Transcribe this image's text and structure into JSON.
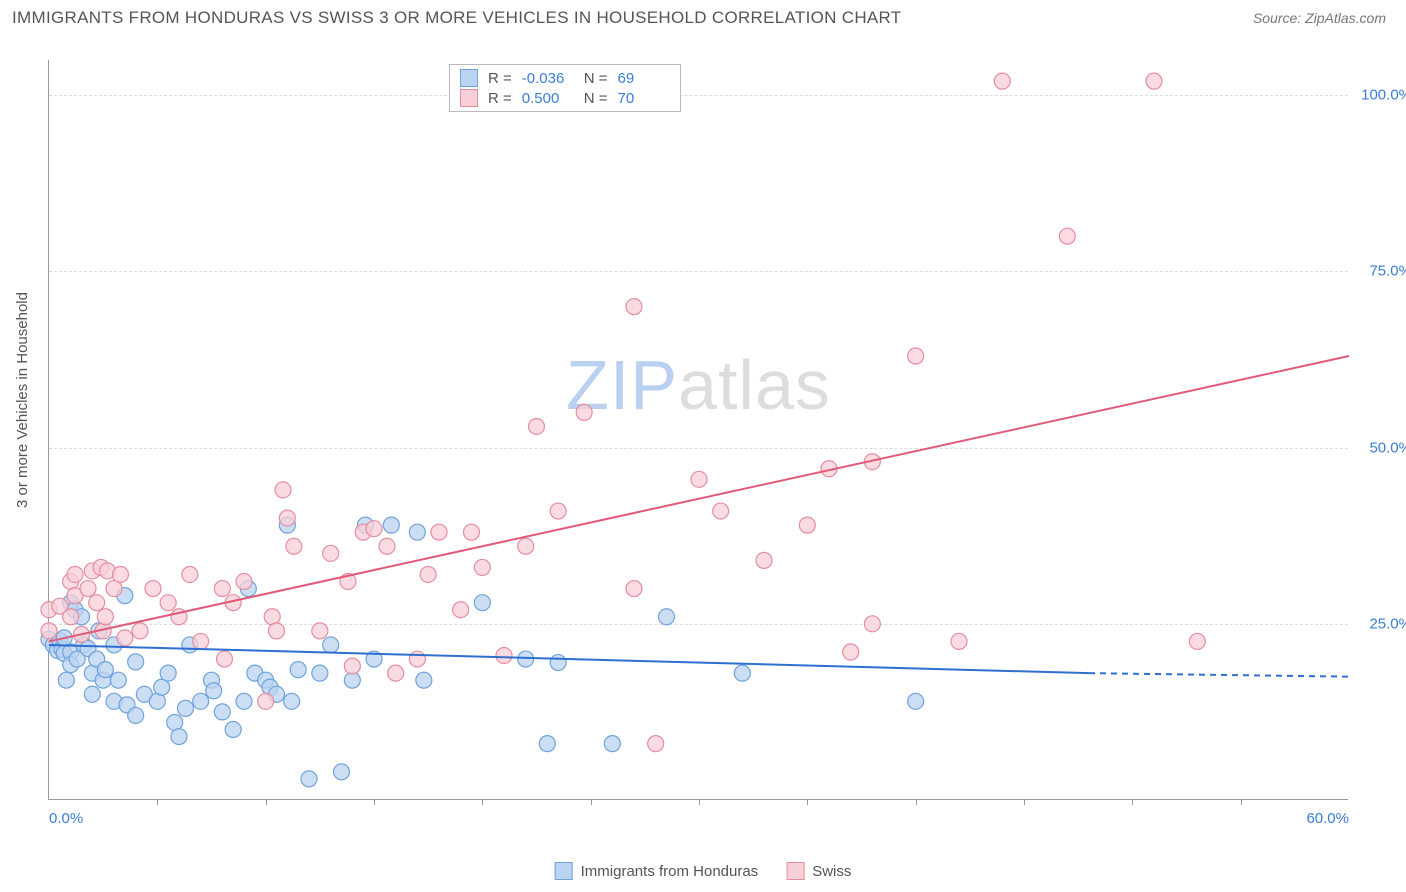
{
  "header": {
    "title": "IMMIGRANTS FROM HONDURAS VS SWISS 3 OR MORE VEHICLES IN HOUSEHOLD CORRELATION CHART",
    "source": "Source: ZipAtlas.com"
  },
  "watermark": {
    "zip": "ZIP",
    "atlas": "atlas"
  },
  "chart": {
    "type": "scatter",
    "background_color": "#ffffff",
    "grid_color": "#dddddd",
    "axis_color": "#999999",
    "text_color": "#555555",
    "tick_label_color": "#3b7dd8",
    "y_axis_title": "3 or more Vehicles in Household",
    "xlim": [
      0,
      60
    ],
    "ylim": [
      0,
      105
    ],
    "x_ticks": [
      0,
      60
    ],
    "x_tick_labels": [
      "0.0%",
      "60.0%"
    ],
    "x_minor_ticks": [
      5,
      10,
      15,
      20,
      25,
      30,
      35,
      40,
      45,
      50,
      55
    ],
    "y_ticks": [
      25,
      50,
      75,
      100
    ],
    "y_tick_labels": [
      "25.0%",
      "50.0%",
      "75.0%",
      "100.0%"
    ],
    "marker_radius": 8,
    "marker_stroke_width": 1.2,
    "trend_line_width": 2,
    "series": [
      {
        "name": "Immigrants from Honduras",
        "marker_fill": "#b9d3f0",
        "marker_stroke": "#6fa3dc",
        "line_color": "#2f6fd0",
        "R": "-0.036",
        "N": "69",
        "trend": {
          "x1": 0,
          "y1": 22.0,
          "x2": 48,
          "y2": 18.0,
          "dash_from_x": 48,
          "dash_to_x": 60,
          "dash_y": 17.5
        },
        "points": [
          [
            0.0,
            22.8
          ],
          [
            0.2,
            22.0
          ],
          [
            0.4,
            21.2
          ],
          [
            0.5,
            22.6
          ],
          [
            0.6,
            21.4
          ],
          [
            0.7,
            20.8
          ],
          [
            0.7,
            23.0
          ],
          [
            0.8,
            17.0
          ],
          [
            1.0,
            21.0
          ],
          [
            1.0,
            19.2
          ],
          [
            1.0,
            28.0
          ],
          [
            1.2,
            27.0
          ],
          [
            1.3,
            20.0
          ],
          [
            1.5,
            26.0
          ],
          [
            1.6,
            22.0
          ],
          [
            1.8,
            21.5
          ],
          [
            2.0,
            15.0
          ],
          [
            2.0,
            18.0
          ],
          [
            2.2,
            20.0
          ],
          [
            2.3,
            24.0
          ],
          [
            2.5,
            17.0
          ],
          [
            2.6,
            18.5
          ],
          [
            3.0,
            14.0
          ],
          [
            3.0,
            22.0
          ],
          [
            3.2,
            17.0
          ],
          [
            3.5,
            29.0
          ],
          [
            3.6,
            13.5
          ],
          [
            4.0,
            12.0
          ],
          [
            4.0,
            19.6
          ],
          [
            4.4,
            15.0
          ],
          [
            5.0,
            14.0
          ],
          [
            5.2,
            16.0
          ],
          [
            5.5,
            18.0
          ],
          [
            5.8,
            11.0
          ],
          [
            6.0,
            9.0
          ],
          [
            6.3,
            13.0
          ],
          [
            6.5,
            22.0
          ],
          [
            7.0,
            14.0
          ],
          [
            7.5,
            17.0
          ],
          [
            7.6,
            15.5
          ],
          [
            8.0,
            12.5
          ],
          [
            8.5,
            10.0
          ],
          [
            9.0,
            14.0
          ],
          [
            9.2,
            30.0
          ],
          [
            9.5,
            18.0
          ],
          [
            10.0,
            17.0
          ],
          [
            10.2,
            16.0
          ],
          [
            10.5,
            15.0
          ],
          [
            11.0,
            39.0
          ],
          [
            11.2,
            14.0
          ],
          [
            11.5,
            18.5
          ],
          [
            12.0,
            3.0
          ],
          [
            12.5,
            18.0
          ],
          [
            13.0,
            22.0
          ],
          [
            13.5,
            4.0
          ],
          [
            14.0,
            17.0
          ],
          [
            14.6,
            39.0
          ],
          [
            15.0,
            20.0
          ],
          [
            15.8,
            39.0
          ],
          [
            17.0,
            38.0
          ],
          [
            17.3,
            17.0
          ],
          [
            20.0,
            28.0
          ],
          [
            22.0,
            20.0
          ],
          [
            23.0,
            8.0
          ],
          [
            23.5,
            19.5
          ],
          [
            26.0,
            8.0
          ],
          [
            28.5,
            26.0
          ],
          [
            32.0,
            18.0
          ],
          [
            40.0,
            14.0
          ]
        ]
      },
      {
        "name": "Swiss",
        "marker_fill": "#f7cfd7",
        "marker_stroke": "#e58ea0",
        "line_color": "#e05a7a",
        "R": "0.500",
        "N": "70",
        "trend": {
          "x1": 0,
          "y1": 22.5,
          "x2": 60,
          "y2": 63.0
        },
        "points": [
          [
            0.0,
            24.0
          ],
          [
            0.0,
            27.0
          ],
          [
            0.5,
            27.5
          ],
          [
            1.0,
            26.0
          ],
          [
            1.0,
            31.0
          ],
          [
            1.2,
            32.0
          ],
          [
            1.2,
            29.0
          ],
          [
            1.5,
            23.5
          ],
          [
            1.8,
            30.0
          ],
          [
            2.0,
            32.5
          ],
          [
            2.2,
            28.0
          ],
          [
            2.4,
            33.0
          ],
          [
            2.5,
            24.0
          ],
          [
            2.6,
            26.0
          ],
          [
            2.7,
            32.5
          ],
          [
            3.0,
            30.0
          ],
          [
            3.3,
            32.0
          ],
          [
            3.5,
            23.0
          ],
          [
            4.2,
            24.0
          ],
          [
            4.8,
            30.0
          ],
          [
            5.5,
            28.0
          ],
          [
            6.0,
            26.0
          ],
          [
            6.5,
            32.0
          ],
          [
            7.0,
            22.5
          ],
          [
            8.0,
            30.0
          ],
          [
            8.1,
            20.0
          ],
          [
            8.5,
            28.0
          ],
          [
            9.0,
            31.0
          ],
          [
            10.0,
            14.0
          ],
          [
            10.3,
            26.0
          ],
          [
            10.5,
            24.0
          ],
          [
            10.8,
            44.0
          ],
          [
            11.0,
            40.0
          ],
          [
            11.3,
            36.0
          ],
          [
            12.5,
            24.0
          ],
          [
            13.0,
            35.0
          ],
          [
            13.8,
            31.0
          ],
          [
            14.0,
            19.0
          ],
          [
            14.5,
            38.0
          ],
          [
            15.0,
            38.5
          ],
          [
            15.6,
            36.0
          ],
          [
            16.0,
            18.0
          ],
          [
            17.0,
            20.0
          ],
          [
            17.5,
            32.0
          ],
          [
            18.0,
            38.0
          ],
          [
            19.0,
            27.0
          ],
          [
            19.5,
            38.0
          ],
          [
            20.0,
            33.0
          ],
          [
            21.0,
            20.5
          ],
          [
            22.0,
            36.0
          ],
          [
            22.5,
            53.0
          ],
          [
            23.5,
            41.0
          ],
          [
            24.7,
            55.0
          ],
          [
            27.0,
            30.0
          ],
          [
            27.0,
            70.0
          ],
          [
            28.0,
            8.0
          ],
          [
            30.0,
            45.5
          ],
          [
            31.0,
            41.0
          ],
          [
            33.0,
            34.0
          ],
          [
            35.0,
            39.0
          ],
          [
            36.0,
            47.0
          ],
          [
            37.0,
            21.0
          ],
          [
            38.0,
            48.0
          ],
          [
            38.0,
            25.0
          ],
          [
            40.0,
            63.0
          ],
          [
            42.0,
            22.5
          ],
          [
            44.0,
            102.0
          ],
          [
            47.0,
            80.0
          ],
          [
            51.0,
            102.0
          ],
          [
            53.0,
            22.5
          ]
        ]
      }
    ],
    "legend_bottom": [
      {
        "label": "Immigrants from Honduras",
        "fill": "#b9d3f0",
        "stroke": "#6fa3dc"
      },
      {
        "label": "Swiss",
        "fill": "#f7cfd7",
        "stroke": "#e58ea0"
      }
    ]
  }
}
